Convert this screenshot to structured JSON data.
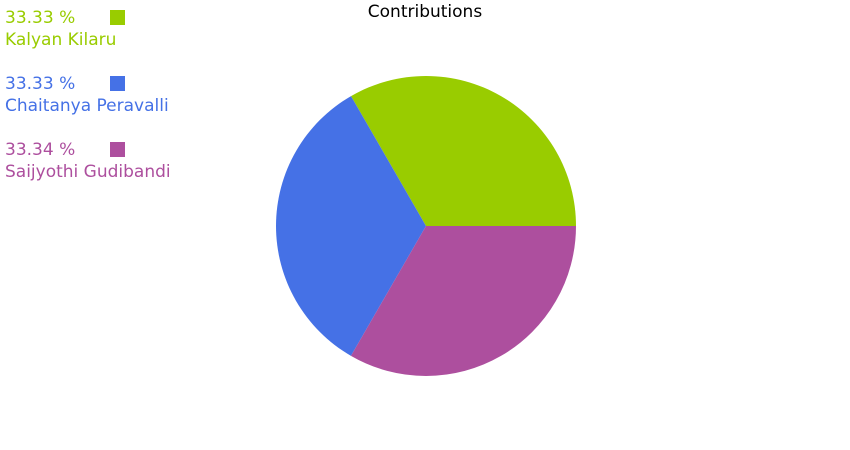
{
  "chart_data": {
    "type": "pie",
    "title": "Contributions",
    "slices": [
      {
        "label": "Kalyan Kilaru",
        "value": 33.33,
        "value_label": "33.33 %",
        "color": "#99cc00"
      },
      {
        "label": "Chaitanya Peravalli",
        "value": 33.33,
        "value_label": "33.33 %",
        "color": "#4571e6"
      },
      {
        "label": "Saijyothi Gudibandi",
        "value": 33.34,
        "value_label": "33.34 %",
        "color": "#ad4f9e"
      }
    ],
    "legend_position": "top-left"
  }
}
